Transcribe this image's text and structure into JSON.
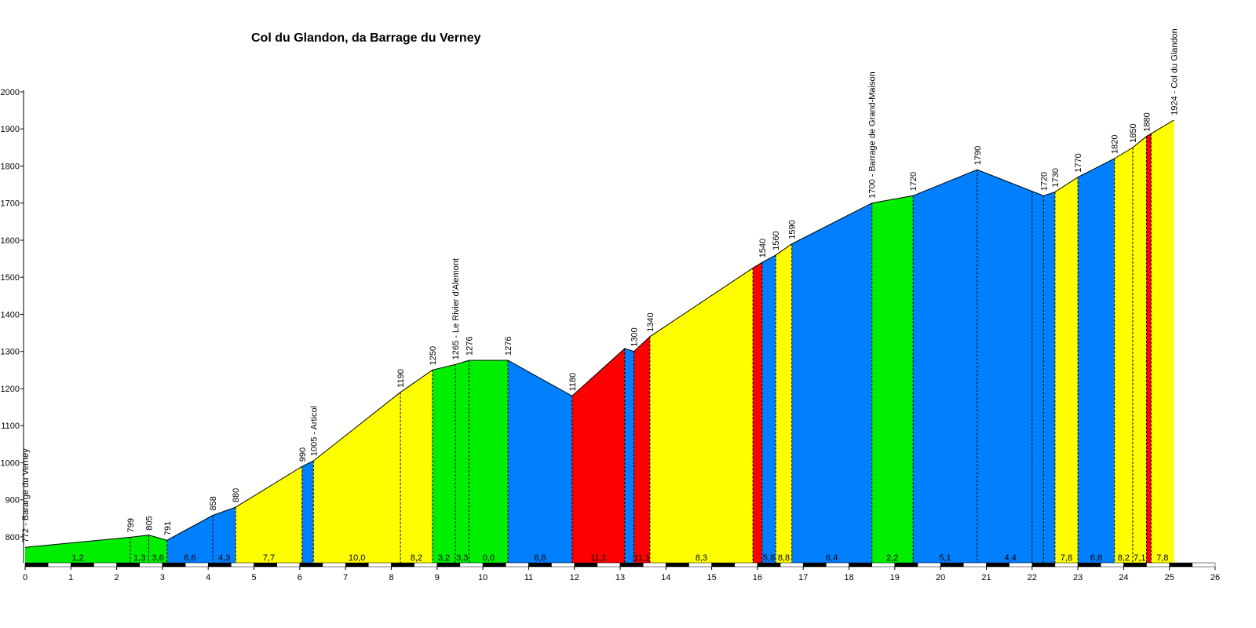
{
  "chart_data": {
    "type": "area",
    "title": "Col du Glandon, da Barrage du Verney",
    "xlabel": "",
    "ylabel": "",
    "xlim": [
      0,
      26
    ],
    "ylim": [
      730,
      2000
    ],
    "y_ticks": [
      800,
      900,
      1000,
      1100,
      1200,
      1300,
      1400,
      1500,
      1600,
      1700,
      1800,
      1900,
      2000
    ],
    "x_ticks": [
      0,
      1,
      2,
      3,
      4,
      5,
      6,
      7,
      8,
      9,
      10,
      11,
      12,
      13,
      14,
      15,
      16,
      17,
      18,
      19,
      20,
      21,
      22,
      23,
      24,
      25,
      26
    ],
    "grade_colors": {
      "green": "#00ee00",
      "blue": "#0080ff",
      "yellow": "#ffff00",
      "red": "#ff0000"
    },
    "profile": [
      {
        "km": 0.0,
        "alt": 772
      },
      {
        "km": 2.3,
        "alt": 799
      },
      {
        "km": 2.7,
        "alt": 805
      },
      {
        "km": 3.1,
        "alt": 791
      },
      {
        "km": 4.1,
        "alt": 858
      },
      {
        "km": 4.6,
        "alt": 880
      },
      {
        "km": 6.05,
        "alt": 990
      },
      {
        "km": 6.3,
        "alt": 1005
      },
      {
        "km": 8.2,
        "alt": 1190
      },
      {
        "km": 8.9,
        "alt": 1250
      },
      {
        "km": 9.4,
        "alt": 1265
      },
      {
        "km": 9.7,
        "alt": 1276
      },
      {
        "km": 10.55,
        "alt": 1276
      },
      {
        "km": 11.95,
        "alt": 1180
      },
      {
        "km": 13.1,
        "alt": 1308
      },
      {
        "km": 13.3,
        "alt": 1300
      },
      {
        "km": 13.65,
        "alt": 1340
      },
      {
        "km": 15.9,
        "alt": 1525
      },
      {
        "km": 16.1,
        "alt": 1540
      },
      {
        "km": 16.4,
        "alt": 1560
      },
      {
        "km": 16.75,
        "alt": 1590
      },
      {
        "km": 18.5,
        "alt": 1700
      },
      {
        "km": 19.4,
        "alt": 1720
      },
      {
        "km": 20.8,
        "alt": 1790
      },
      {
        "km": 22.25,
        "alt": 1720
      },
      {
        "km": 22.5,
        "alt": 1730
      },
      {
        "km": 23.0,
        "alt": 1770
      },
      {
        "km": 23.8,
        "alt": 1820
      },
      {
        "km": 24.2,
        "alt": 1850
      },
      {
        "km": 24.5,
        "alt": 1880
      },
      {
        "km": 25.1,
        "alt": 1924
      }
    ],
    "segments": [
      {
        "from": 0.0,
        "to": 2.3,
        "grade": "1,2",
        "color": "green"
      },
      {
        "from": 2.3,
        "to": 2.7,
        "grade": "1,3",
        "color": "green"
      },
      {
        "from": 2.7,
        "to": 3.1,
        "grade": "3,6",
        "color": "green"
      },
      {
        "from": 3.1,
        "to": 4.1,
        "grade": "6,6",
        "color": "blue"
      },
      {
        "from": 4.1,
        "to": 4.6,
        "grade": "4,3",
        "color": "blue"
      },
      {
        "from": 4.6,
        "to": 6.05,
        "grade": "7,7",
        "color": "yellow"
      },
      {
        "from": 6.05,
        "to": 6.3,
        "grade": "",
        "color": "blue"
      },
      {
        "from": 6.3,
        "to": 8.2,
        "grade": "10,0",
        "color": "yellow"
      },
      {
        "from": 8.2,
        "to": 8.9,
        "grade": "8,2",
        "color": "yellow"
      },
      {
        "from": 8.9,
        "to": 9.4,
        "grade": "3,2",
        "color": "green"
      },
      {
        "from": 9.4,
        "to": 9.7,
        "grade": "3,3",
        "color": "green"
      },
      {
        "from": 9.7,
        "to": 10.55,
        "grade": "0,0",
        "color": "green"
      },
      {
        "from": 10.55,
        "to": 11.95,
        "grade": "6,8",
        "color": "blue"
      },
      {
        "from": 11.95,
        "to": 13.1,
        "grade": "11,1",
        "color": "red"
      },
      {
        "from": 13.1,
        "to": 13.3,
        "grade": "",
        "color": "blue"
      },
      {
        "from": 13.3,
        "to": 13.65,
        "grade": "11,1",
        "color": "red"
      },
      {
        "from": 13.65,
        "to": 15.9,
        "grade": "8,3",
        "color": "yellow"
      },
      {
        "from": 15.9,
        "to": 16.1,
        "grade": "",
        "color": "red"
      },
      {
        "from": 16.1,
        "to": 16.4,
        "grade": "5,8",
        "color": "blue"
      },
      {
        "from": 16.4,
        "to": 16.75,
        "grade": "8,8",
        "color": "yellow"
      },
      {
        "from": 16.75,
        "to": 18.5,
        "grade": "6,4",
        "color": "blue"
      },
      {
        "from": 18.5,
        "to": 19.4,
        "grade": "2,2",
        "color": "green"
      },
      {
        "from": 19.4,
        "to": 20.8,
        "grade": "5,1",
        "color": "blue"
      },
      {
        "from": 20.8,
        "to": 22.25,
        "grade": "4,4",
        "color": "blue"
      },
      {
        "from": 22.25,
        "to": 22.5,
        "grade": "",
        "color": "blue"
      },
      {
        "from": 22.5,
        "to": 23.0,
        "grade": "7,8",
        "color": "yellow"
      },
      {
        "from": 23.0,
        "to": 23.8,
        "grade": "6,8",
        "color": "blue"
      },
      {
        "from": 23.8,
        "to": 24.2,
        "grade": "8,2",
        "color": "yellow"
      },
      {
        "from": 24.2,
        "to": 24.5,
        "grade": "7,1",
        "color": "yellow"
      },
      {
        "from": 24.5,
        "to": 24.6,
        "grade": "",
        "color": "red"
      },
      {
        "from": 24.6,
        "to": 25.1,
        "grade": "7,8",
        "color": "yellow"
      }
    ],
    "dividers": [
      2.3,
      2.7,
      4.1,
      8.2,
      9.4,
      9.7,
      20.8,
      22.0,
      22.25,
      22.5,
      23.0,
      24.2
    ],
    "point_labels": [
      {
        "km": 0.0,
        "text": "772 - Bararge du Verney"
      },
      {
        "km": 2.3,
        "text": "799"
      },
      {
        "km": 2.7,
        "text": "805"
      },
      {
        "km": 3.1,
        "text": "791"
      },
      {
        "km": 4.1,
        "text": "858"
      },
      {
        "km": 4.6,
        "text": "880"
      },
      {
        "km": 6.05,
        "text": "990"
      },
      {
        "km": 6.3,
        "text": "1005 - Articol"
      },
      {
        "km": 8.2,
        "text": "1190"
      },
      {
        "km": 8.9,
        "text": "1250"
      },
      {
        "km": 9.4,
        "text": "1265 - Le Rivier d'Alemont"
      },
      {
        "km": 9.7,
        "text": "1276"
      },
      {
        "km": 10.55,
        "text": "1276"
      },
      {
        "km": 11.95,
        "text": "1180"
      },
      {
        "km": 13.3,
        "text": "1300"
      },
      {
        "km": 13.65,
        "text": "1340"
      },
      {
        "km": 16.1,
        "text": "1540"
      },
      {
        "km": 16.4,
        "text": "1560"
      },
      {
        "km": 16.75,
        "text": "1590"
      },
      {
        "km": 18.5,
        "text": "1700 - Barrage de Grand-Maison"
      },
      {
        "km": 19.4,
        "text": "1720"
      },
      {
        "km": 20.8,
        "text": "1790"
      },
      {
        "km": 22.25,
        "text": "1720"
      },
      {
        "km": 22.5,
        "text": "1730"
      },
      {
        "km": 23.0,
        "text": "1770"
      },
      {
        "km": 23.8,
        "text": "1820"
      },
      {
        "km": 24.2,
        "text": "1850"
      },
      {
        "km": 24.5,
        "text": "1880"
      },
      {
        "km": 25.1,
        "text": "1924 - Col du Glandon"
      }
    ]
  }
}
